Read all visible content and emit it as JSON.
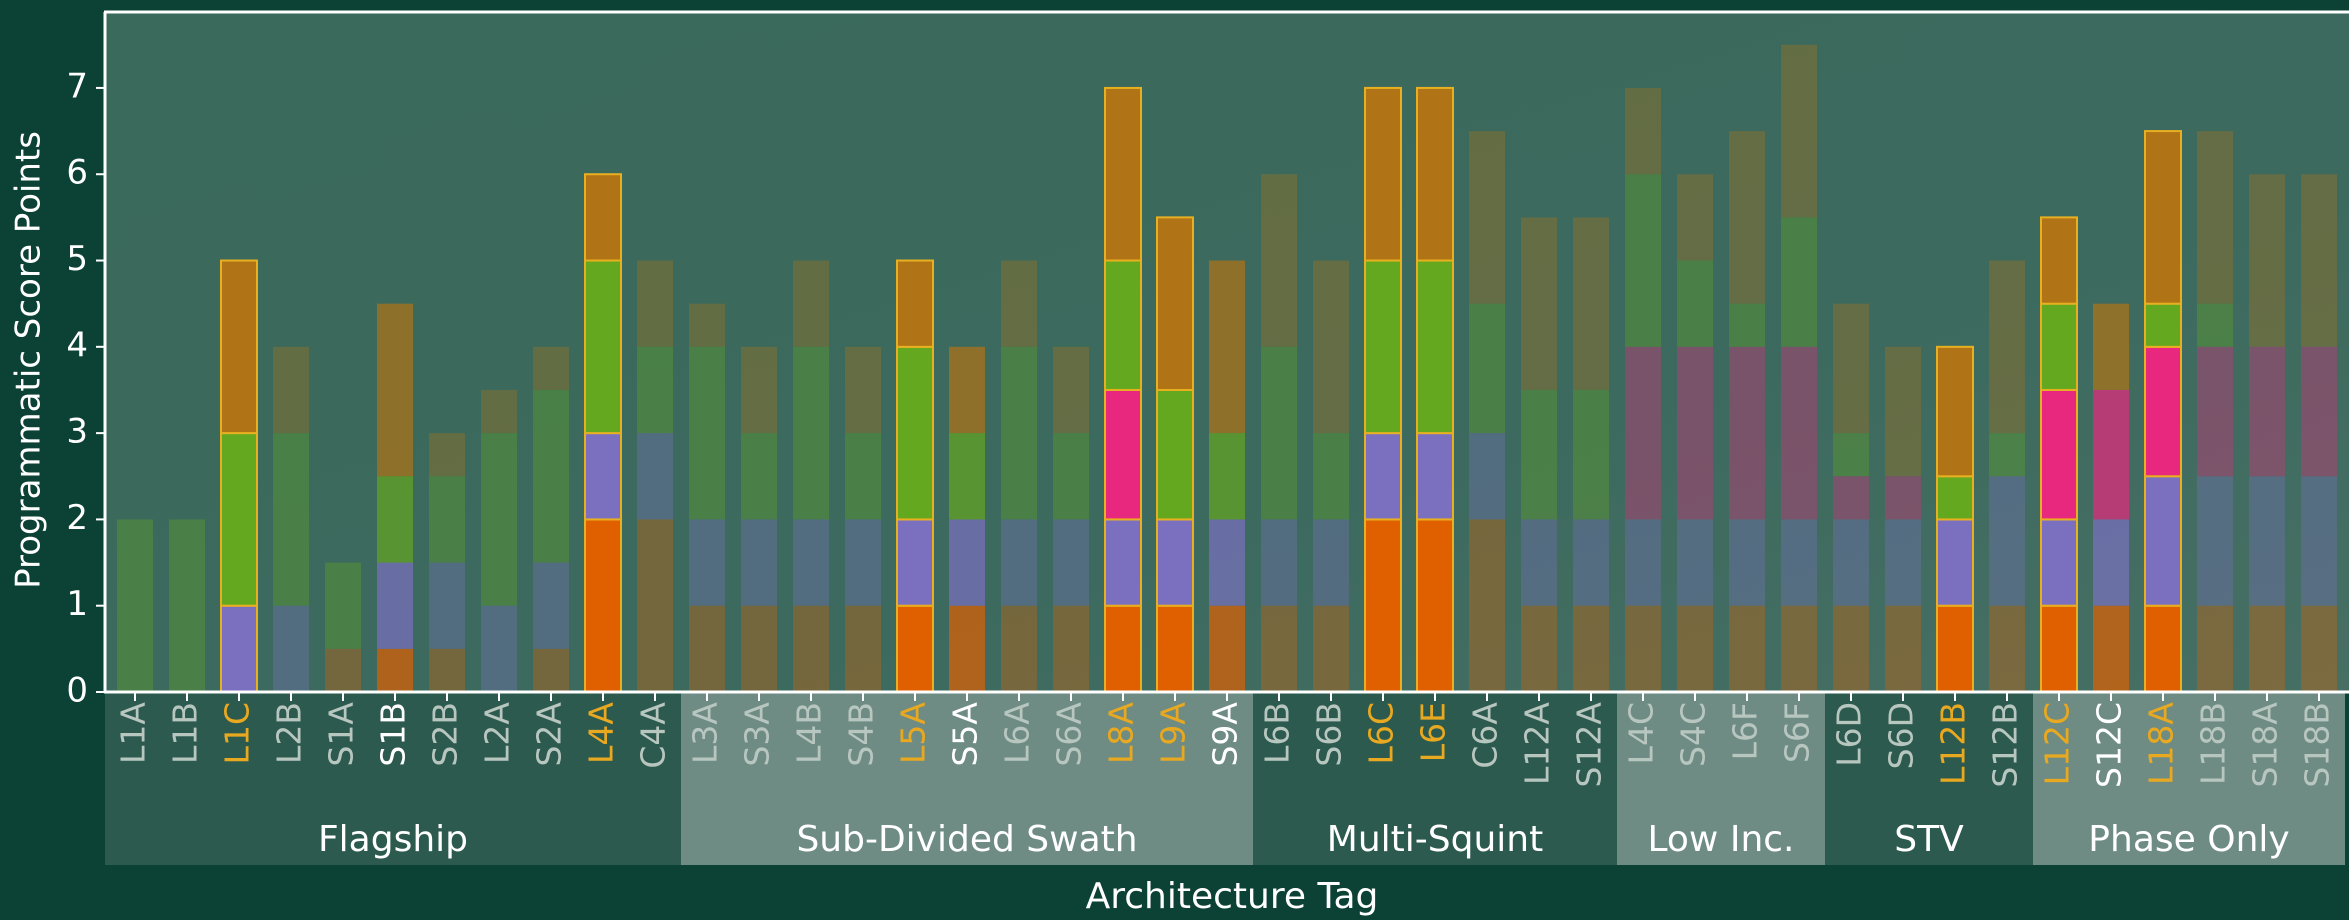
{
  "chart_data": {
    "type": "stacked_bar",
    "y_label": "Programmatic Score Points",
    "x_label": "Architecture Tag",
    "categories": [
      "L1A",
      "L1B",
      "L1C",
      "L2B",
      "S1A",
      "S1B",
      "S2B",
      "L2A",
      "S2A",
      "L4A",
      "C4A",
      "L3A",
      "S3A",
      "L4B",
      "S4B",
      "L5A",
      "S5A",
      "L6A",
      "S6A",
      "L8A",
      "L9A",
      "S9A",
      "L6B",
      "S6B",
      "L6C",
      "L6E",
      "C6A",
      "L12A",
      "S12A",
      "L4C",
      "S4C",
      "L6F",
      "S6F",
      "L6D",
      "S6D",
      "L12B",
      "S12B",
      "L12C",
      "S12C",
      "L18A",
      "L18B",
      "S18A",
      "S18B"
    ],
    "series": [
      {
        "color": "#e06000",
        "values": [
          0,
          0,
          0,
          0,
          0.5,
          0.5,
          0.5,
          0,
          0.5,
          2,
          2,
          1,
          1,
          1,
          1,
          1,
          1,
          1,
          1,
          1,
          1,
          1,
          1,
          1,
          2,
          2,
          2,
          1,
          1,
          1,
          1,
          1,
          1,
          1,
          1,
          1,
          1,
          1,
          1,
          1,
          1,
          1,
          1
        ]
      },
      {
        "color": "#7b70c0",
        "values": [
          0,
          0,
          1,
          1,
          0,
          1,
          1,
          1,
          1,
          1,
          1,
          1,
          1,
          1,
          1,
          1,
          1,
          1,
          1,
          1,
          1,
          1,
          1,
          1,
          1,
          1,
          1,
          1,
          1,
          1,
          1,
          1,
          1,
          1,
          1,
          1,
          1.5,
          1,
          1,
          1.5,
          1.5,
          1.5,
          1.5
        ]
      },
      {
        "color": "#e8287f",
        "values": [
          0,
          0,
          0,
          0,
          0,
          0,
          0,
          0,
          0,
          0,
          0,
          0,
          0,
          0,
          0,
          0,
          0,
          0,
          0,
          1.5,
          0,
          0,
          0,
          0,
          0,
          0,
          0,
          0,
          0,
          2,
          2,
          2,
          2,
          0.5,
          0.5,
          0,
          0,
          1.5,
          1.5,
          1.5,
          1.5,
          1.5,
          1.5
        ]
      },
      {
        "color": "#64a820",
        "values": [
          2,
          2,
          2,
          2,
          1,
          1,
          1,
          2,
          2,
          2,
          1,
          2,
          1,
          2,
          1,
          2,
          1,
          2,
          1,
          1.5,
          1.5,
          1,
          2,
          1,
          2,
          2,
          1.5,
          1.5,
          1.5,
          2,
          1,
          0.5,
          1.5,
          0.5,
          0,
          0.5,
          0.5,
          1,
          0,
          0.5,
          0.5,
          0,
          0
        ]
      },
      {
        "color": "#b07316",
        "values": [
          0,
          0,
          2,
          1,
          0,
          2,
          0.5,
          0.5,
          0.5,
          1,
          1,
          0.5,
          1,
          1,
          1,
          1,
          1,
          1,
          1,
          2,
          2,
          2,
          2,
          2,
          2,
          2,
          2,
          2,
          2,
          1,
          1,
          2,
          2,
          1.5,
          1.5,
          1.5,
          2,
          1,
          1,
          2,
          2,
          2,
          2
        ]
      }
    ],
    "label_colors": [
      "#b8c6c0",
      "#b8c6c0",
      "#e8a820",
      "#b8c6c0",
      "#b8c6c0",
      "#ffffff",
      "#b8c6c0",
      "#b8c6c0",
      "#b8c6c0",
      "#e8a820",
      "#b8c6c0",
      "#b8c6c0",
      "#b8c6c0",
      "#b8c6c0",
      "#b8c6c0",
      "#e8a820",
      "#ffffff",
      "#b8c6c0",
      "#b8c6c0",
      "#e8a820",
      "#e8a820",
      "#ffffff",
      "#b8c6c0",
      "#b8c6c0",
      "#e8a820",
      "#e8a820",
      "#b8c6c0",
      "#b8c6c0",
      "#b8c6c0",
      "#b8c6c0",
      "#b8c6c0",
      "#b8c6c0",
      "#b8c6c0",
      "#b8c6c0",
      "#b8c6c0",
      "#e8a820",
      "#b8c6c0",
      "#e8a820",
      "#ffffff",
      "#e8a820",
      "#b8c6c0",
      "#b8c6c0",
      "#b8c6c0"
    ],
    "bar_opacity": [
      0.35,
      0.35,
      1,
      0.35,
      0.35,
      0.7,
      0.35,
      0.35,
      0.35,
      1,
      0.35,
      0.35,
      0.35,
      0.35,
      0.35,
      1,
      0.7,
      0.35,
      0.35,
      1,
      1,
      0.7,
      0.35,
      0.35,
      1,
      1,
      0.35,
      0.35,
      0.35,
      0.35,
      0.35,
      0.35,
      0.35,
      0.35,
      0.35,
      1,
      0.35,
      1,
      0.7,
      1,
      0.35,
      0.35,
      0.35
    ],
    "outline_color": "#e8b020",
    "groups": [
      {
        "label": "Flagship",
        "count": 11,
        "color": "#2d5a4f"
      },
      {
        "label": "Sub-Divided Swath",
        "count": 11,
        "color": "#6e8c84"
      },
      {
        "label": "Multi-Squint",
        "count": 7,
        "color": "#2d5a4f"
      },
      {
        "label": "Low Inc.",
        "count": 4,
        "color": "#6e8c84"
      },
      {
        "label": "STV",
        "count": 4,
        "color": "#2d5a4f"
      },
      {
        "label": "Phase Only",
        "count": 6,
        "color": "#6e8c84"
      }
    ],
    "ylim": [
      0,
      7.88
    ],
    "yticks": [
      0,
      1,
      2,
      3,
      4,
      5,
      6,
      7
    ]
  }
}
